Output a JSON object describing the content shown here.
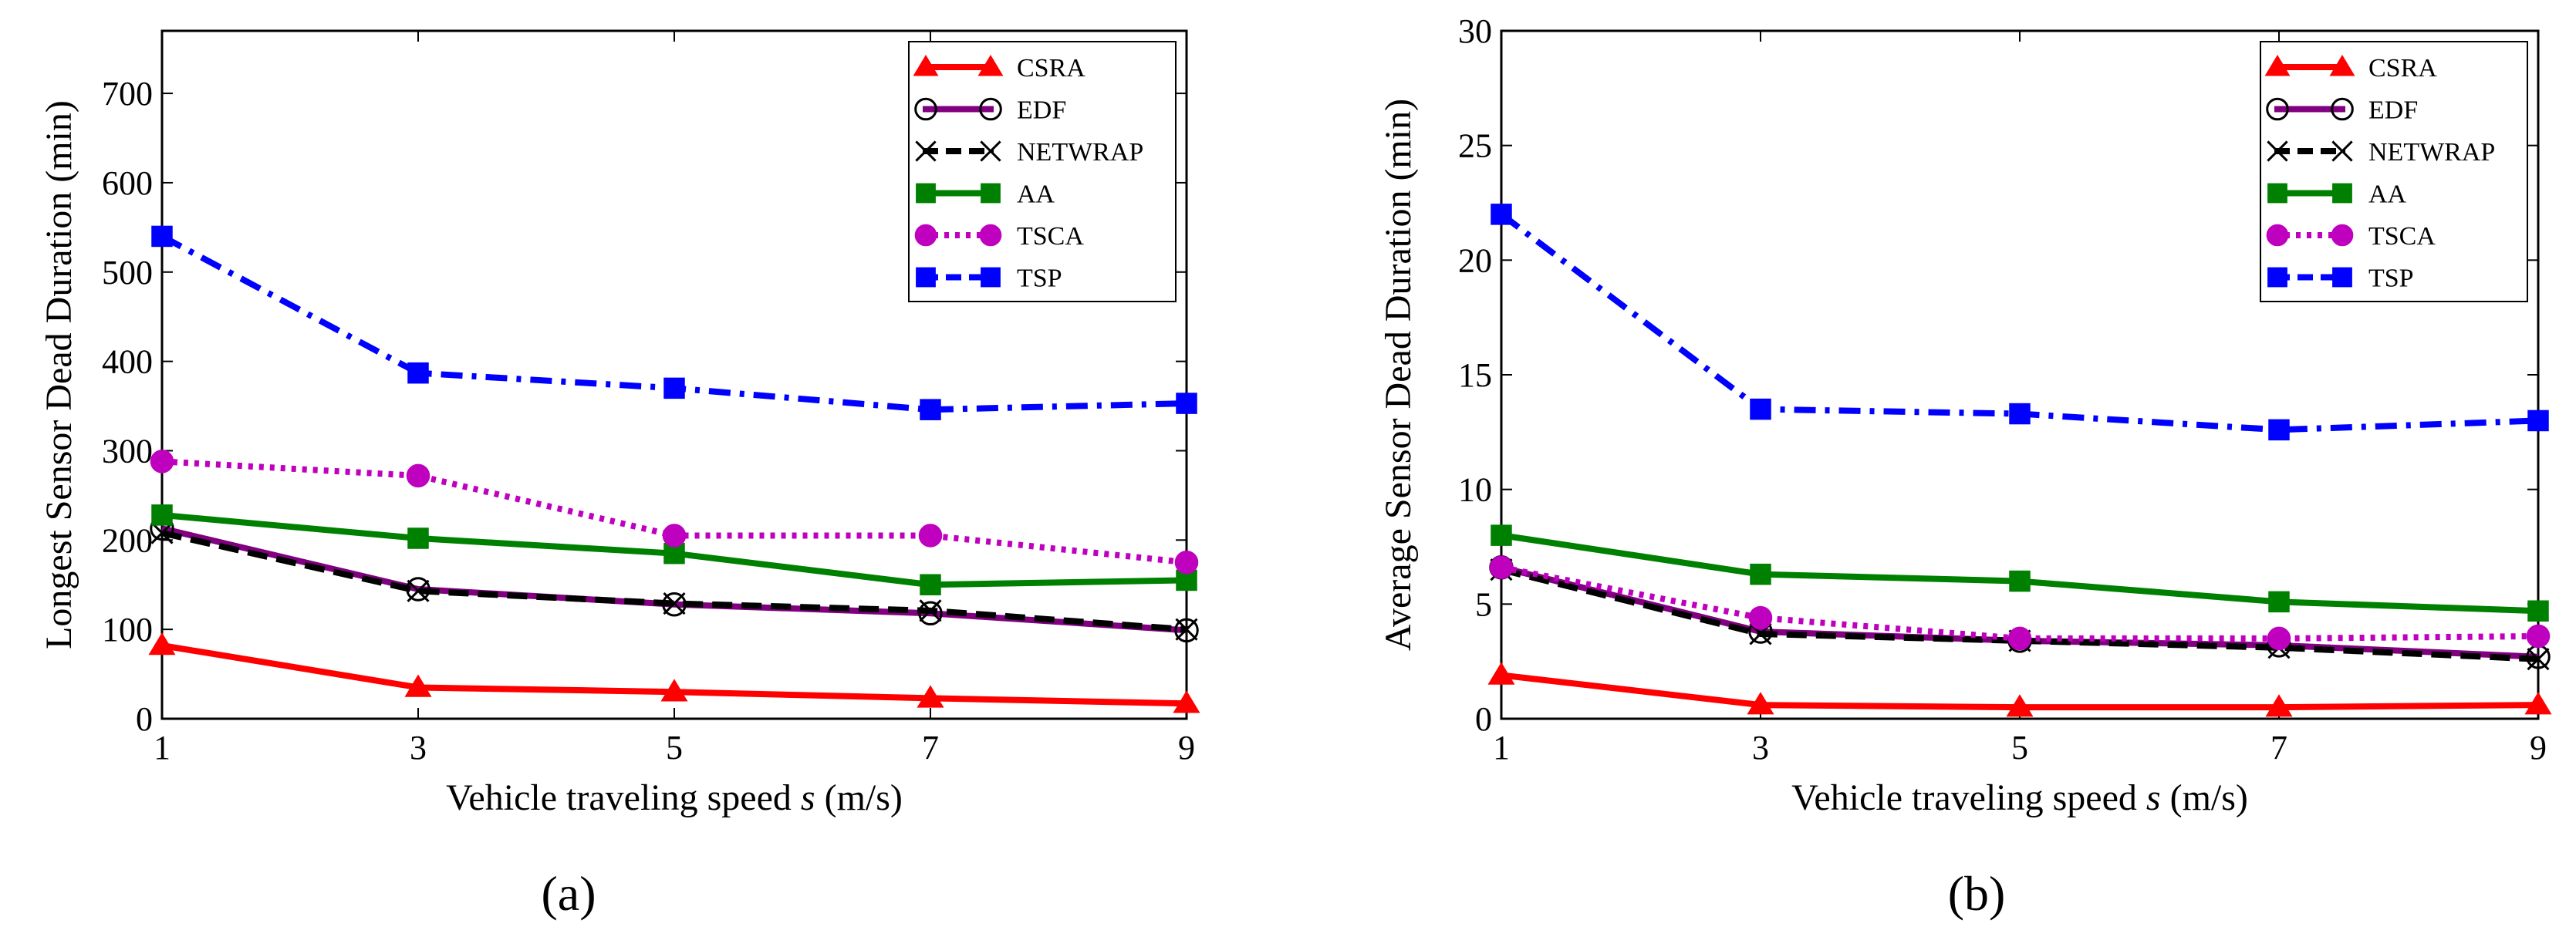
{
  "chart_data": [
    {
      "type": "line",
      "panel_label": "(a)",
      "title": "",
      "xlabel": "Vehicle traveling speed s (m/s)",
      "ylabel": "Longest Sensor Dead Duration (min)",
      "x": [
        1,
        3,
        5,
        7,
        9
      ],
      "xlim": [
        1,
        9
      ],
      "ylim": [
        0,
        770
      ],
      "xticks": [
        "1",
        "3",
        "5",
        "7",
        "9"
      ],
      "yticks": [
        "0",
        "100",
        "200",
        "300",
        "400",
        "500",
        "600",
        "700"
      ],
      "legend_position": "top-right",
      "series": [
        {
          "name": "CSRA",
          "values": [
            82,
            35,
            30,
            23,
            17
          ]
        },
        {
          "name": "EDF",
          "values": [
            213,
            145,
            128,
            118,
            99
          ]
        },
        {
          "name": "NETWRAP",
          "values": [
            208,
            143,
            129,
            121,
            100
          ]
        },
        {
          "name": "AA",
          "values": [
            228,
            202,
            185,
            150,
            155
          ]
        },
        {
          "name": "TSCA",
          "values": [
            288,
            272,
            205,
            205,
            175
          ]
        },
        {
          "name": "TSP",
          "values": [
            540,
            387,
            370,
            346,
            353
          ]
        }
      ]
    },
    {
      "type": "line",
      "panel_label": "(b)",
      "title": "",
      "xlabel": "Vehicle traveling speed s (m/s)",
      "ylabel": "Average Sensor Dead Duration (min)",
      "x": [
        1,
        3,
        5,
        7,
        9
      ],
      "xlim": [
        1,
        9
      ],
      "ylim": [
        0,
        30
      ],
      "xticks": [
        "1",
        "3",
        "5",
        "7",
        "9"
      ],
      "yticks": [
        "0",
        "5",
        "10",
        "15",
        "20",
        "25",
        "30"
      ],
      "legend_position": "top-right",
      "series": [
        {
          "name": "CSRA",
          "values": [
            1.9,
            0.6,
            0.5,
            0.5,
            0.6
          ]
        },
        {
          "name": "EDF",
          "values": [
            6.6,
            3.8,
            3.4,
            3.2,
            2.7
          ]
        },
        {
          "name": "NETWRAP",
          "values": [
            6.5,
            3.7,
            3.4,
            3.1,
            2.6
          ]
        },
        {
          "name": "AA",
          "values": [
            8.0,
            6.3,
            6.0,
            5.1,
            4.7
          ]
        },
        {
          "name": "TSCA",
          "values": [
            6.6,
            4.4,
            3.5,
            3.5,
            3.6
          ]
        },
        {
          "name": "TSP",
          "values": [
            22.0,
            13.5,
            13.3,
            12.6,
            13.0
          ]
        }
      ]
    }
  ],
  "series_styles": {
    "CSRA": {
      "color": "#ff0000",
      "marker": "triangle",
      "dash": "solid"
    },
    "EDF": {
      "color": "#800080",
      "marker": "circle-open",
      "dash": "solid"
    },
    "NETWRAP": {
      "color": "#000000",
      "marker": "x",
      "dash": "dashed"
    },
    "AA": {
      "color": "#008000",
      "marker": "square",
      "dash": "solid"
    },
    "TSCA": {
      "color": "#bf00bf",
      "marker": "circle",
      "dash": "dotted"
    },
    "TSP": {
      "color": "#0000ff",
      "marker": "square",
      "dash": "dashdot"
    }
  }
}
